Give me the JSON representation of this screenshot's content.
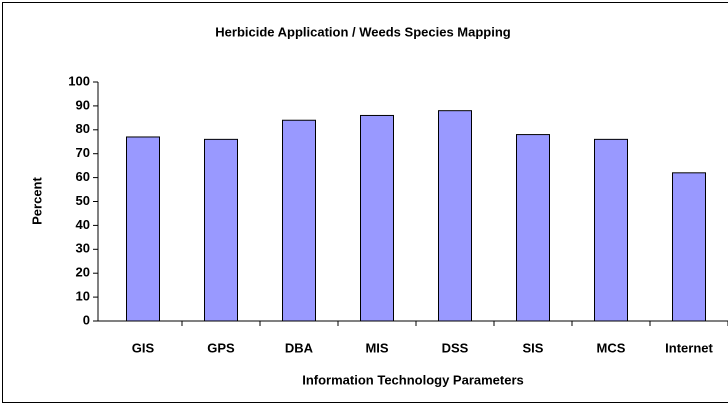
{
  "chart_data": {
    "type": "bar",
    "title": "Herbicide Application / Weeds Species Mapping",
    "x_label": "Information Technology Parameters",
    "y_label": "Percent",
    "categories": [
      "GIS",
      "GPS",
      "DBA",
      "MIS",
      "DSS",
      "SIS",
      "MCS",
      "Internet"
    ],
    "values": [
      77,
      76,
      84,
      86,
      88,
      78,
      76,
      62
    ],
    "color": "#9999ff",
    "ylim": [
      0,
      100
    ],
    "yticks": [
      0,
      10,
      20,
      30,
      40,
      50,
      60,
      70,
      80,
      90,
      100
    ],
    "grid": false
  }
}
